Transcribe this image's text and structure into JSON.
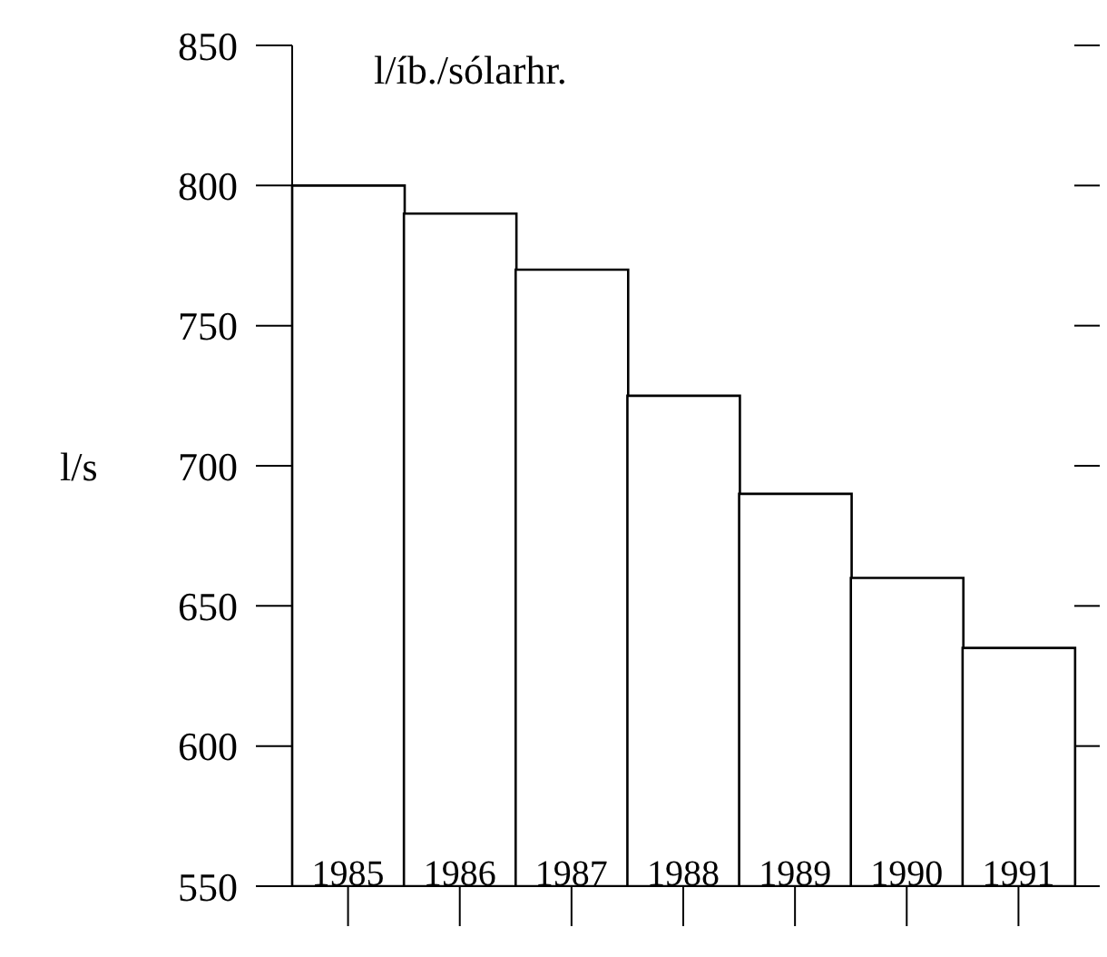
{
  "chart_data": {
    "type": "bar",
    "title": "l/íb./sólarhr.",
    "ylabel": "l/s",
    "categories": [
      "1985",
      "1986",
      "1987",
      "1988",
      "1989",
      "1990",
      "1991"
    ],
    "values": [
      800,
      790,
      770,
      725,
      690,
      660,
      635
    ],
    "color": "#ffffff",
    "ylim": [
      550,
      850
    ],
    "yticks": [
      550,
      600,
      650,
      700,
      750,
      800,
      850
    ]
  }
}
